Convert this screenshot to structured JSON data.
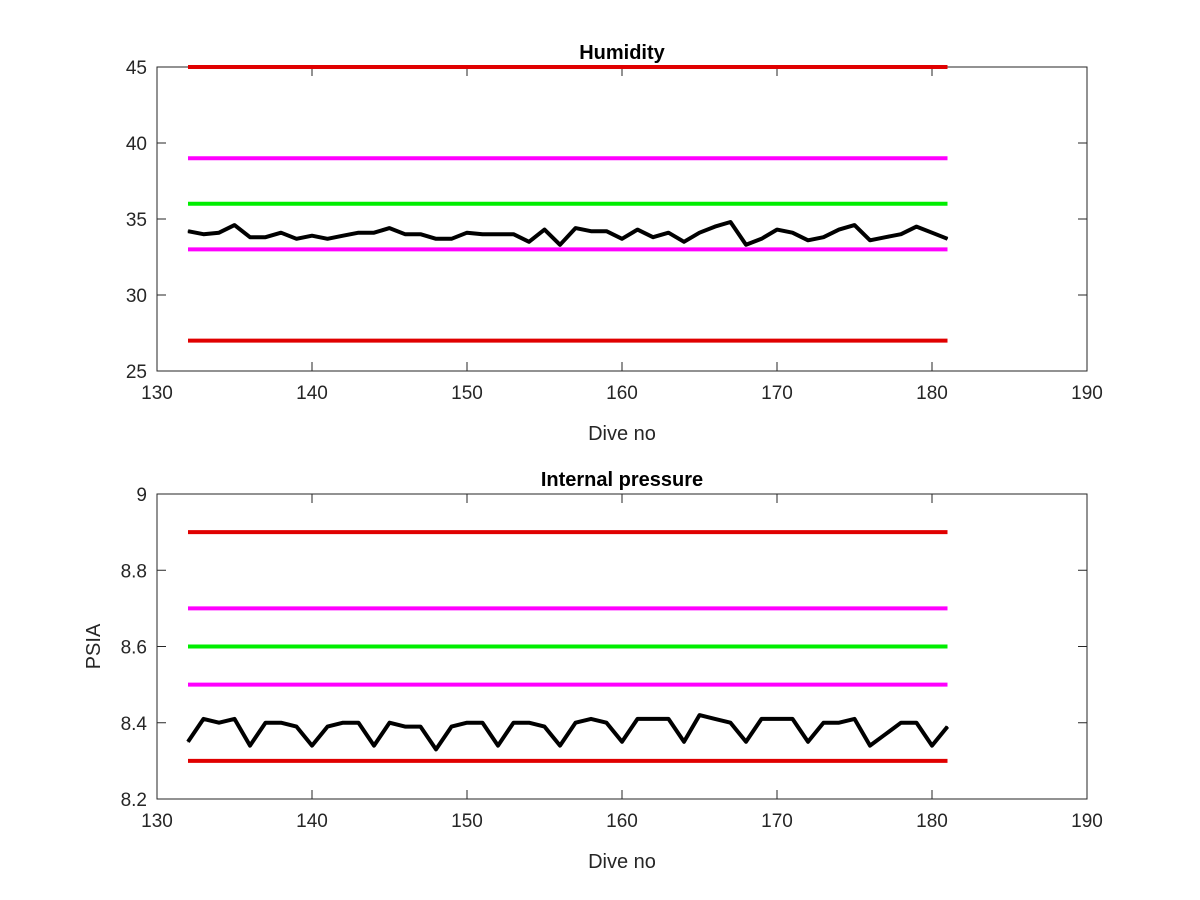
{
  "chart_data": [
    {
      "type": "line",
      "title": "Humidity",
      "xlabel": "Dive no",
      "ylabel": "",
      "xlim": [
        130,
        190
      ],
      "ylim": [
        25,
        45
      ],
      "xticks": [
        "130",
        "140",
        "150",
        "160",
        "170",
        "180",
        "190"
      ],
      "yticks": [
        "25",
        "30",
        "35",
        "40",
        "45"
      ],
      "grid": false,
      "reference_lines": [
        {
          "y": 45,
          "x": [
            132,
            181
          ],
          "color": "#e00000"
        },
        {
          "y": 39,
          "x": [
            132,
            181
          ],
          "color": "#ff00ff"
        },
        {
          "y": 36,
          "x": [
            132,
            181
          ],
          "color": "#00ee00"
        },
        {
          "y": 33,
          "x": [
            132,
            181
          ],
          "color": "#ff00ff"
        },
        {
          "y": 27,
          "x": [
            132,
            181
          ],
          "color": "#e00000"
        }
      ],
      "series": [
        {
          "color": "#000000",
          "x": [
            132,
            133,
            134,
            135,
            136,
            137,
            138,
            139,
            140,
            141,
            142,
            143,
            144,
            145,
            146,
            147,
            148,
            149,
            150,
            151,
            152,
            153,
            154,
            155,
            156,
            157,
            158,
            159,
            160,
            161,
            162,
            163,
            164,
            165,
            166,
            167,
            168,
            169,
            170,
            171,
            172,
            173,
            174,
            175,
            176,
            177,
            178,
            179,
            180,
            181
          ],
          "values": [
            34.2,
            34.0,
            34.1,
            34.6,
            33.8,
            33.8,
            34.1,
            33.7,
            33.9,
            33.7,
            33.9,
            34.1,
            34.1,
            34.4,
            34.0,
            34.0,
            33.7,
            33.7,
            34.1,
            34.0,
            34.0,
            34.0,
            33.5,
            34.3,
            33.3,
            34.4,
            34.2,
            34.2,
            33.7,
            34.3,
            33.8,
            34.1,
            33.5,
            34.1,
            34.5,
            34.8,
            33.3,
            33.7,
            34.3,
            34.1,
            33.6,
            33.8,
            34.3,
            34.6,
            33.6,
            33.8,
            34.0,
            34.5,
            34.1,
            33.7
          ]
        }
      ]
    },
    {
      "type": "line",
      "title": "Internal pressure",
      "xlabel": "Dive no",
      "ylabel": "PSIA",
      "xlim": [
        130,
        190
      ],
      "ylim": [
        8.2,
        9.0
      ],
      "xticks": [
        "130",
        "140",
        "150",
        "160",
        "170",
        "180",
        "190"
      ],
      "yticks": [
        "8.2",
        "8.4",
        "8.6",
        "8.8",
        "9"
      ],
      "grid": false,
      "reference_lines": [
        {
          "y": 8.9,
          "x": [
            132,
            181
          ],
          "color": "#e00000"
        },
        {
          "y": 8.7,
          "x": [
            132,
            181
          ],
          "color": "#ff00ff"
        },
        {
          "y": 8.6,
          "x": [
            132,
            181
          ],
          "color": "#00ee00"
        },
        {
          "y": 8.5,
          "x": [
            132,
            181
          ],
          "color": "#ff00ff"
        },
        {
          "y": 8.3,
          "x": [
            132,
            181
          ],
          "color": "#e00000"
        }
      ],
      "series": [
        {
          "color": "#000000",
          "x": [
            132,
            133,
            134,
            135,
            136,
            137,
            138,
            139,
            140,
            141,
            142,
            143,
            144,
            145,
            146,
            147,
            148,
            149,
            150,
            151,
            152,
            153,
            154,
            155,
            156,
            157,
            158,
            159,
            160,
            161,
            162,
            163,
            164,
            165,
            166,
            167,
            168,
            169,
            170,
            171,
            172,
            173,
            174,
            175,
            176,
            177,
            178,
            179,
            180,
            181
          ],
          "values": [
            8.35,
            8.41,
            8.4,
            8.41,
            8.34,
            8.4,
            8.4,
            8.39,
            8.34,
            8.39,
            8.4,
            8.4,
            8.34,
            8.4,
            8.39,
            8.39,
            8.33,
            8.39,
            8.4,
            8.4,
            8.34,
            8.4,
            8.4,
            8.39,
            8.34,
            8.4,
            8.41,
            8.4,
            8.35,
            8.41,
            8.41,
            8.41,
            8.35,
            8.42,
            8.41,
            8.4,
            8.35,
            8.41,
            8.41,
            8.41,
            8.35,
            8.4,
            8.4,
            8.41,
            8.34,
            8.37,
            8.4,
            8.4,
            8.34,
            8.39
          ]
        }
      ]
    }
  ]
}
